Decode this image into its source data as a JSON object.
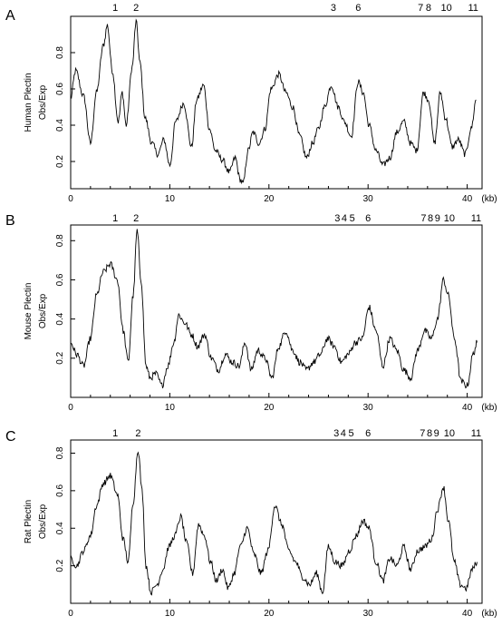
{
  "chart_data": [
    {
      "type": "line",
      "panel_label": "A",
      "ylabel": "Human Plectin",
      "ylabel2": "Obs/Exp",
      "x_unit": "(kb)",
      "xlim": [
        0,
        41.5
      ],
      "ylim": [
        0.05,
        1.0
      ],
      "x_ticks": [
        0,
        10,
        20,
        30,
        40
      ],
      "y_ticks": [
        0.2,
        0.4,
        0.6,
        0.8
      ],
      "peak_labels": [
        {
          "text": "1",
          "x": 4.5
        },
        {
          "text": "2",
          "x": 6.6
        },
        {
          "text": "3",
          "x": 26.5
        },
        {
          "text": "6",
          "x": 29.0
        },
        {
          "text": "7",
          "x": 35.3
        },
        {
          "text": "8",
          "x": 36.1
        },
        {
          "text": "10",
          "x": 37.9
        },
        {
          "text": "11",
          "x": 40.6
        }
      ],
      "series": [
        {
          "x": [
            0,
            0.5,
            1.3,
            2.0,
            2.6,
            3.3,
            3.7,
            4.2,
            4.8,
            5.2,
            5.6,
            6.2,
            6.6,
            7.0,
            7.5,
            8.2,
            8.8,
            9.4,
            10.0,
            10.6,
            11.4,
            12.2,
            12.7,
            13.4,
            14.0,
            14.6,
            15.3,
            16.0,
            16.6,
            17.1,
            17.4,
            17.9,
            18.4,
            19.0,
            19.6,
            20.2,
            21.0,
            21.7,
            22.4,
            23.1,
            23.8,
            24.4,
            25.0,
            25.6,
            26.3,
            27.0,
            27.6,
            28.3,
            29.0,
            29.5,
            30.1,
            30.8,
            31.5,
            32.2,
            32.9,
            33.6,
            34.3,
            34.9,
            35.6,
            36.1,
            36.7,
            37.3,
            37.8,
            38.5,
            39.1,
            39.8,
            40.4,
            40.9
          ],
          "y": [
            0.55,
            0.7,
            0.56,
            0.3,
            0.58,
            0.84,
            0.95,
            0.7,
            0.42,
            0.58,
            0.4,
            0.72,
            0.97,
            0.74,
            0.44,
            0.3,
            0.24,
            0.32,
            0.18,
            0.42,
            0.52,
            0.28,
            0.54,
            0.62,
            0.38,
            0.26,
            0.21,
            0.14,
            0.22,
            0.1,
            0.08,
            0.26,
            0.36,
            0.3,
            0.38,
            0.6,
            0.68,
            0.58,
            0.5,
            0.34,
            0.22,
            0.3,
            0.38,
            0.5,
            0.62,
            0.5,
            0.42,
            0.34,
            0.64,
            0.58,
            0.4,
            0.26,
            0.18,
            0.22,
            0.36,
            0.42,
            0.3,
            0.26,
            0.58,
            0.54,
            0.3,
            0.58,
            0.44,
            0.28,
            0.32,
            0.24,
            0.38,
            0.54
          ]
        }
      ]
    },
    {
      "type": "line",
      "panel_label": "B",
      "ylabel": "Mouse Plectin",
      "ylabel2": "Obs/Exp",
      "x_unit": "(kb)",
      "xlim": [
        0,
        41.5
      ],
      "ylim": [
        0.0,
        0.88
      ],
      "x_ticks": [
        0,
        10,
        20,
        30,
        40
      ],
      "y_ticks": [
        0.2,
        0.4,
        0.6,
        0.8
      ],
      "peak_labels": [
        {
          "text": "1",
          "x": 4.5
        },
        {
          "text": "2",
          "x": 6.6
        },
        {
          "text": "3",
          "x": 26.9
        },
        {
          "text": "4",
          "x": 27.6
        },
        {
          "text": "5",
          "x": 28.4
        },
        {
          "text": "6",
          "x": 30.0
        },
        {
          "text": "7",
          "x": 35.6
        },
        {
          "text": "8",
          "x": 36.3
        },
        {
          "text": "9",
          "x": 37.0
        },
        {
          "text": "10",
          "x": 38.2
        },
        {
          "text": "11",
          "x": 40.9
        }
      ],
      "series": [
        {
          "x": [
            0,
            0.6,
            1.3,
            2.0,
            2.6,
            3.3,
            4.0,
            4.7,
            5.3,
            5.8,
            6.3,
            6.7,
            7.1,
            7.6,
            8.0,
            8.6,
            9.2,
            9.8,
            10.4,
            10.9,
            11.5,
            12.2,
            12.8,
            13.5,
            14.2,
            14.9,
            15.6,
            16.3,
            17.0,
            17.6,
            18.2,
            18.9,
            19.6,
            20.3,
            21.0,
            21.7,
            22.4,
            23.1,
            23.8,
            24.5,
            25.2,
            25.9,
            26.6,
            27.3,
            28.0,
            28.7,
            29.4,
            30.1,
            30.8,
            31.5,
            32.2,
            32.9,
            33.6,
            34.3,
            35.0,
            35.7,
            36.4,
            37.0,
            37.6,
            38.1,
            38.7,
            39.4,
            40.0,
            40.6,
            41.0
          ],
          "y": [
            0.28,
            0.22,
            0.16,
            0.3,
            0.52,
            0.64,
            0.68,
            0.6,
            0.34,
            0.18,
            0.52,
            0.85,
            0.6,
            0.16,
            0.1,
            0.12,
            0.06,
            0.16,
            0.28,
            0.42,
            0.38,
            0.32,
            0.26,
            0.32,
            0.2,
            0.14,
            0.22,
            0.18,
            0.16,
            0.28,
            0.14,
            0.24,
            0.2,
            0.1,
            0.26,
            0.34,
            0.24,
            0.18,
            0.14,
            0.18,
            0.22,
            0.3,
            0.26,
            0.18,
            0.22,
            0.28,
            0.3,
            0.46,
            0.34,
            0.16,
            0.3,
            0.24,
            0.14,
            0.1,
            0.24,
            0.34,
            0.3,
            0.4,
            0.6,
            0.52,
            0.3,
            0.08,
            0.06,
            0.22,
            0.28
          ]
        }
      ]
    },
    {
      "type": "line",
      "panel_label": "C",
      "ylabel": "Rat Plectin",
      "ylabel2": "Obs/Exp",
      "x_unit": "(kb)",
      "xlim": [
        0,
        41.5
      ],
      "ylim": [
        0.0,
        0.87
      ],
      "x_ticks": [
        0,
        10,
        20,
        30,
        40
      ],
      "y_ticks": [
        0.2,
        0.4,
        0.6,
        0.8
      ],
      "peak_labels": [
        {
          "text": "1",
          "x": 4.5
        },
        {
          "text": "2",
          "x": 6.8
        },
        {
          "text": "3",
          "x": 26.8
        },
        {
          "text": "4",
          "x": 27.5
        },
        {
          "text": "5",
          "x": 28.3
        },
        {
          "text": "6",
          "x": 30.0
        },
        {
          "text": "7",
          "x": 35.5
        },
        {
          "text": "8",
          "x": 36.2
        },
        {
          "text": "9",
          "x": 36.9
        },
        {
          "text": "10",
          "x": 38.2
        },
        {
          "text": "11",
          "x": 40.9
        }
      ],
      "series": [
        {
          "x": [
            0,
            0.6,
            1.3,
            2.0,
            2.6,
            3.3,
            4.0,
            4.7,
            5.3,
            5.8,
            6.3,
            6.8,
            7.2,
            7.6,
            8.1,
            8.7,
            9.3,
            9.9,
            10.5,
            11.1,
            11.7,
            12.3,
            12.9,
            13.5,
            14.1,
            14.7,
            15.3,
            15.9,
            16.5,
            17.1,
            17.8,
            18.5,
            19.2,
            19.9,
            20.6,
            21.3,
            22.0,
            22.7,
            23.4,
            24.1,
            24.8,
            25.4,
            26.0,
            26.7,
            27.4,
            28.1,
            28.8,
            29.5,
            30.1,
            30.8,
            31.5,
            32.2,
            32.9,
            33.6,
            34.3,
            35.0,
            35.7,
            36.4,
            37.0,
            37.6,
            38.1,
            38.7,
            39.3,
            39.9,
            40.5,
            41.0
          ],
          "y": [
            0.24,
            0.2,
            0.28,
            0.36,
            0.52,
            0.64,
            0.68,
            0.58,
            0.34,
            0.22,
            0.54,
            0.82,
            0.6,
            0.2,
            0.06,
            0.1,
            0.18,
            0.3,
            0.36,
            0.46,
            0.32,
            0.16,
            0.42,
            0.36,
            0.22,
            0.12,
            0.18,
            0.08,
            0.16,
            0.3,
            0.4,
            0.26,
            0.16,
            0.28,
            0.52,
            0.42,
            0.28,
            0.22,
            0.14,
            0.1,
            0.16,
            0.06,
            0.3,
            0.22,
            0.2,
            0.28,
            0.36,
            0.44,
            0.4,
            0.22,
            0.12,
            0.24,
            0.2,
            0.3,
            0.18,
            0.28,
            0.3,
            0.34,
            0.5,
            0.62,
            0.44,
            0.22,
            0.1,
            0.08,
            0.18,
            0.22
          ]
        }
      ]
    }
  ]
}
